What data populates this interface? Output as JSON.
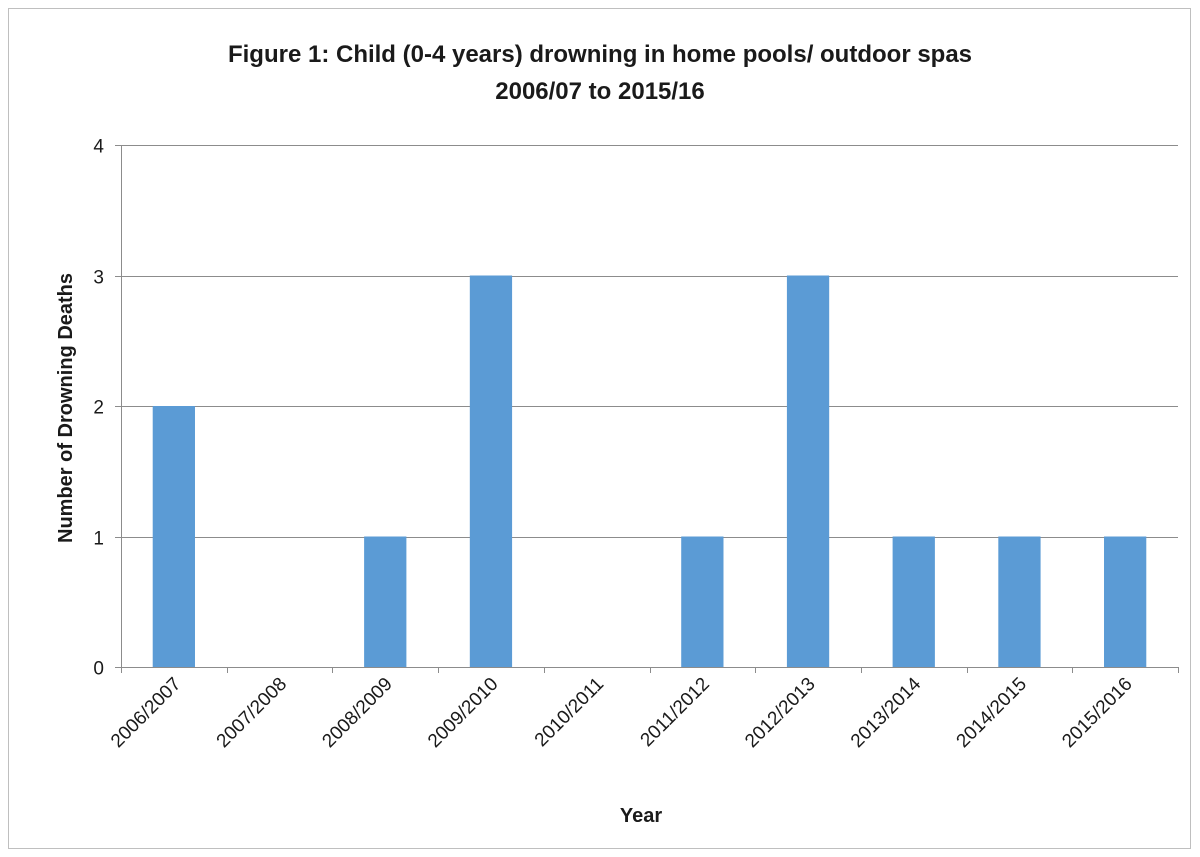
{
  "chart_data": {
    "type": "bar",
    "title_line1": "Figure 1: Child (0-4 years) drowning in home pools/ outdoor spas",
    "title_line2": "2006/07 to 2015/16",
    "xlabel": "Year",
    "ylabel": "Number of Drowning Deaths",
    "categories": [
      "2006/2007",
      "2007/2008",
      "2008/2009",
      "2009/2010",
      "2010/2011",
      "2011/2012",
      "2012/2013",
      "2013/2014",
      "2014/2015",
      "2015/2016"
    ],
    "values": [
      2,
      0,
      1,
      3,
      0,
      1,
      3,
      1,
      1,
      1
    ],
    "ylim": [
      0,
      4
    ],
    "yticks": [
      0,
      1,
      2,
      3,
      4
    ],
    "grid": true,
    "bar_color": "#5b9bd5",
    "grid_color": "#8c8c8c"
  }
}
